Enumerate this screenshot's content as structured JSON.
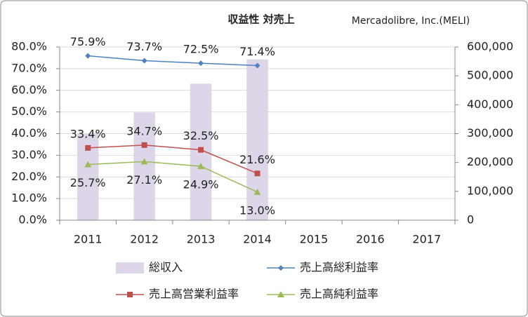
{
  "chart_data": {
    "type": "bar-line",
    "title": "収益性 対売上",
    "annotation": "Mercadolibre, Inc.(MELI)",
    "categories": [
      "2011",
      "2012",
      "2013",
      "2014",
      "2015",
      "2016",
      "2017"
    ],
    "series": [
      {
        "name": "総収入",
        "type": "bar",
        "axis": "y2",
        "color": "#dcd6e8",
        "values": [
          299000,
          373000,
          473000,
          557000,
          null,
          null,
          null
        ]
      },
      {
        "name": "売上高総利益率",
        "type": "line",
        "marker": "diamond",
        "label_position": "above",
        "color": "#4f81bd",
        "values": [
          75.9,
          73.7,
          72.5,
          71.4,
          null,
          null,
          null
        ],
        "value_labels": [
          "75.9%",
          "73.7%",
          "72.5%",
          "71.4%",
          null,
          null,
          null
        ]
      },
      {
        "name": "売上高営業利益率",
        "type": "line",
        "marker": "square",
        "label_position": "above",
        "color": "#c0504d",
        "values": [
          33.4,
          34.7,
          32.5,
          21.6,
          null,
          null,
          null
        ],
        "value_labels": [
          "33.4%",
          "34.7%",
          "32.5%",
          "21.6%",
          null,
          null,
          null
        ]
      },
      {
        "name": "売上高純利益率",
        "type": "line",
        "marker": "triangle",
        "label_position": "below",
        "color": "#9bbb59",
        "values": [
          25.7,
          27.1,
          24.9,
          13.0,
          null,
          null,
          null
        ],
        "value_labels": [
          "25.7%",
          "27.1%",
          "24.9%",
          "13.0%",
          null,
          null,
          null
        ]
      }
    ],
    "ylim": [
      0,
      80
    ],
    "yticks": [
      {
        "value": 0,
        "label": "0.0%"
      },
      {
        "value": 10,
        "label": "10.0%"
      },
      {
        "value": 20,
        "label": "20.0%"
      },
      {
        "value": 30,
        "label": "30.0%"
      },
      {
        "value": 40,
        "label": "40.0%"
      },
      {
        "value": 50,
        "label": "50.0%"
      },
      {
        "value": 60,
        "label": "60.0%"
      },
      {
        "value": 70,
        "label": "70.0%"
      },
      {
        "value": 80,
        "label": "80.0%"
      }
    ],
    "y2lim": [
      0,
      600000
    ],
    "y2ticks": [
      0,
      {
        "value": 100000,
        "label": "100,000"
      },
      {
        "value": 200000,
        "label": "200,000"
      },
      {
        "value": 300000,
        "label": "300,000"
      },
      {
        "value": 400000,
        "label": "400,000"
      },
      {
        "value": 500000,
        "label": "500,000"
      },
      {
        "value": 600000,
        "label": "600,000"
      }
    ],
    "grid": true
  }
}
